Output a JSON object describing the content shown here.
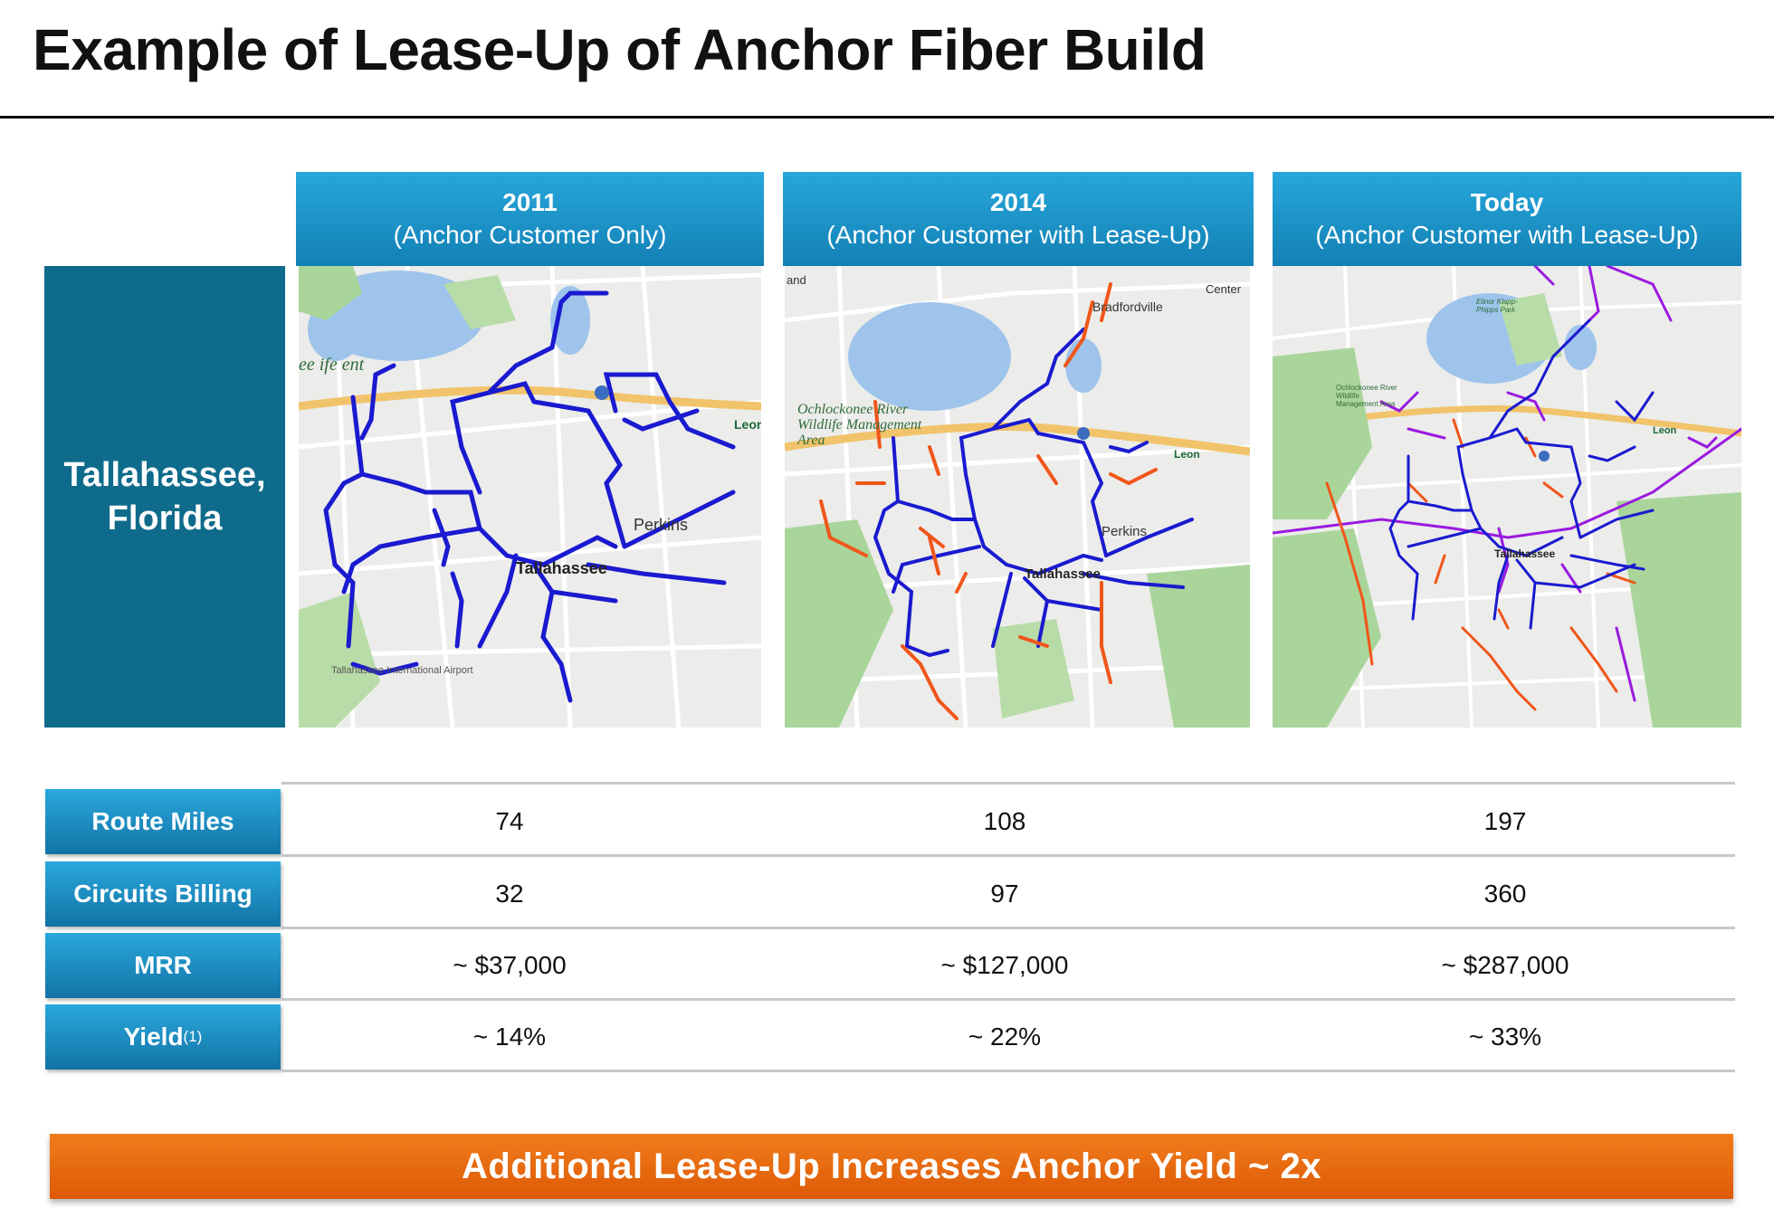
{
  "title": "Example of Lease-Up of Anchor Fiber Build",
  "columns": [
    {
      "year": "2011",
      "subtitle": "(Anchor Customer Only)"
    },
    {
      "year": "2014",
      "subtitle": "(Anchor Customer with Lease-Up)"
    },
    {
      "year": "Today",
      "subtitle": "(Anchor Customer with Lease-Up)"
    }
  ],
  "city": {
    "line1": "Tallahassee,",
    "line2": "Florida"
  },
  "maps": [
    {
      "labels": {
        "city": "Tallahassee",
        "perkins": "Perkins",
        "leon": "Leon",
        "airport": "Tallahassee International Airport",
        "fragment": "ee ife ent"
      }
    },
    {
      "labels": {
        "city": "Tallahassee",
        "perkins": "Perkins",
        "leon": "Leon",
        "bradfordville": "Bradfordville",
        "center": "Center",
        "wildlife": "Ochlockonee River Wildlife Management Area",
        "fragment": "and"
      }
    },
    {
      "labels": {
        "city": "Tallahassee",
        "leon": "Leon",
        "wildlife": "Ochlockonee River Wildlife Management Area",
        "park": "Elinor Klapp-Phipps Park"
      }
    }
  ],
  "colors": {
    "accent": "#1a9ad6",
    "city_box": "#0f6b8b",
    "anchor_route": "#1a1ad0",
    "leaseup_route": "#f0561a",
    "today_route": "#9a1ae0",
    "banner": "#e8650d"
  },
  "table": {
    "rows": [
      {
        "label": "Route Miles",
        "values": [
          "74",
          "108",
          "197"
        ]
      },
      {
        "label": "Circuits Billing",
        "values": [
          "32",
          "97",
          "360"
        ]
      },
      {
        "label": "MRR",
        "values": [
          "~ $37,000",
          "~ $127,000",
          "~ $287,000"
        ]
      },
      {
        "label": "Yield",
        "sup": "(1)",
        "values": [
          "~ 14%",
          "~ 22%",
          "~ 33%"
        ]
      }
    ]
  },
  "banner": "Additional Lease-Up Increases Anchor Yield ~ 2x"
}
